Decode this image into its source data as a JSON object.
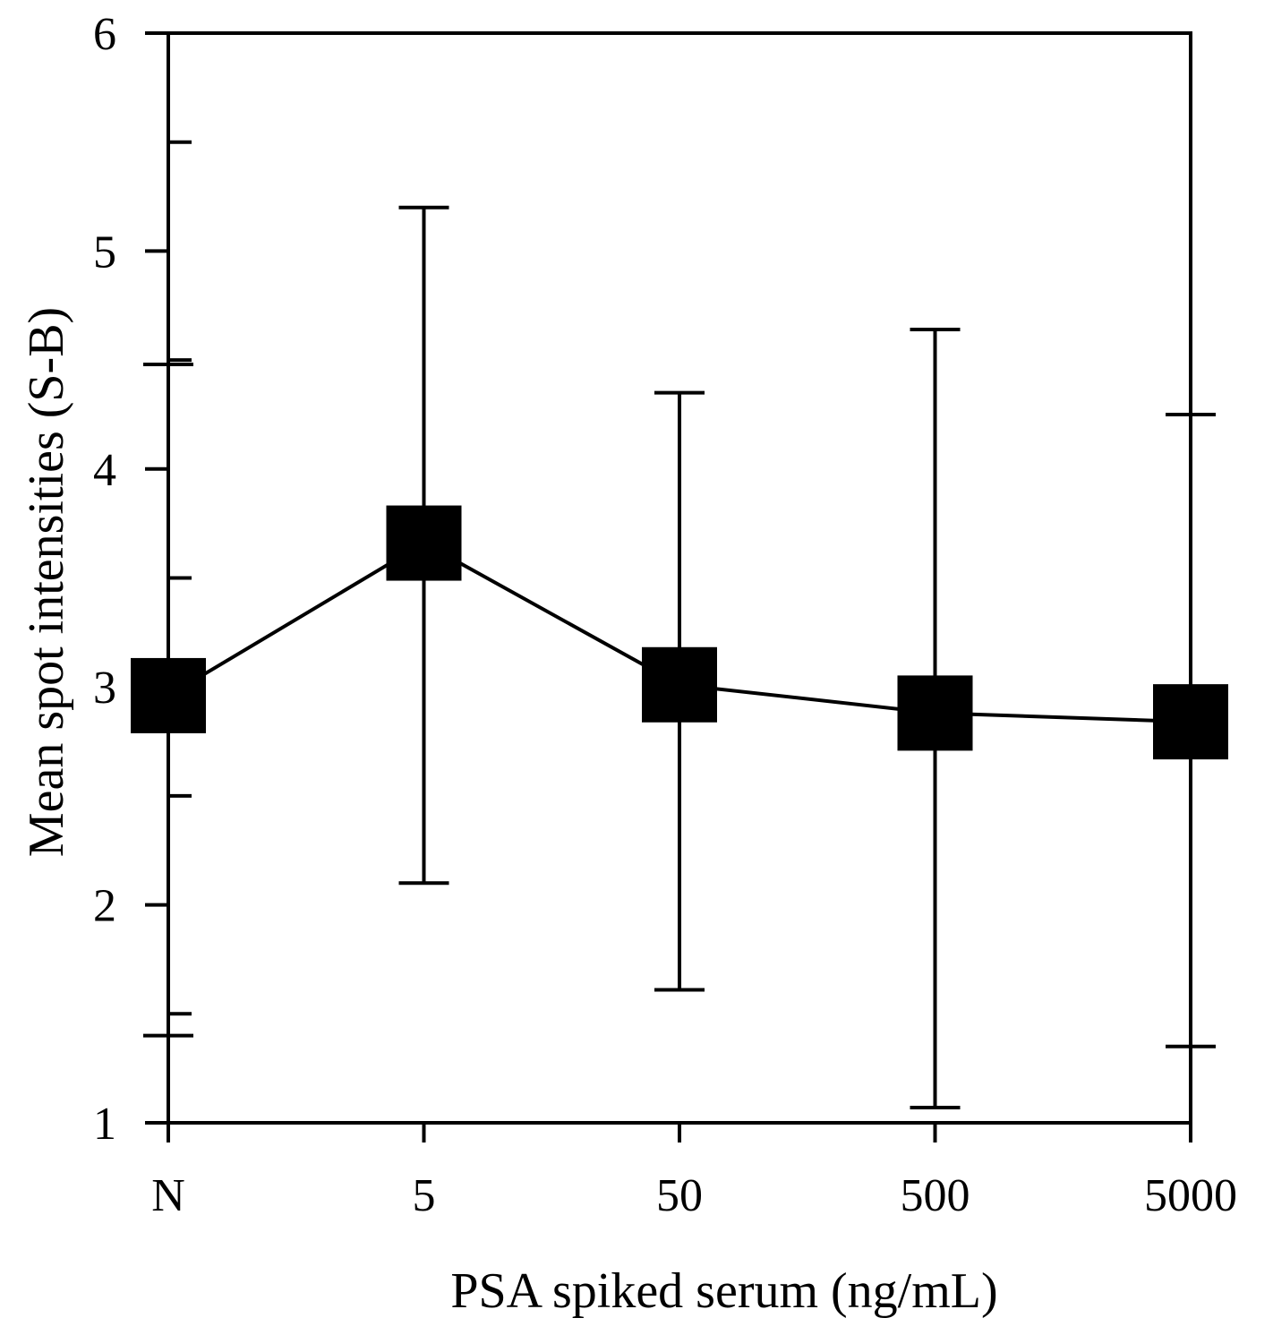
{
  "chart_data": {
    "type": "line",
    "title": "",
    "xlabel": "PSA spiked serum (ng/mL)",
    "ylabel": "Mean spot intensities (S-B)",
    "categories": [
      "N",
      "5",
      "50",
      "500",
      "5000"
    ],
    "series": [
      {
        "values": [
          2.96,
          3.66,
          3.01,
          2.88,
          2.84
        ],
        "error_upper": [
          4.48,
          5.2,
          4.35,
          4.64,
          4.25
        ],
        "error_lower": [
          1.4,
          2.1,
          1.61,
          1.07,
          1.35
        ]
      }
    ],
    "ylim": [
      1,
      6
    ],
    "yticks": [
      "1",
      "2",
      "3",
      "4",
      "5",
      "6"
    ],
    "grid": false,
    "legend": "none",
    "marker": "square",
    "colors": {
      "line": "#000000",
      "marker": "#000000"
    }
  }
}
